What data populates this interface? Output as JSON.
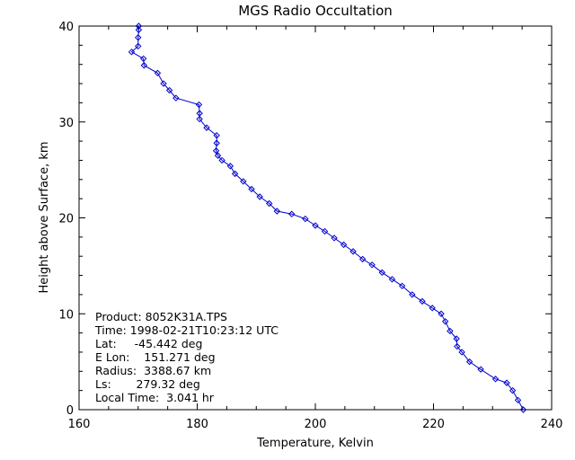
{
  "chart_data": {
    "type": "line",
    "title": "MGS Radio Occultation",
    "xlabel": "Temperature, Kelvin",
    "ylabel": "Height above Surface, km",
    "xlim": [
      160,
      240
    ],
    "ylim": [
      0,
      40
    ],
    "xticks": [
      "160",
      "180",
      "200",
      "220",
      "240"
    ],
    "yticks": [
      "0",
      "10",
      "20",
      "30",
      "40"
    ],
    "grid": false,
    "line_color": "#0000cc",
    "series": [
      {
        "points": [
          [
            235.2,
            0.0
          ],
          [
            234.3,
            1.0
          ],
          [
            233.4,
            2.0
          ],
          [
            232.4,
            2.8
          ],
          [
            230.5,
            3.2
          ],
          [
            228.0,
            4.2
          ],
          [
            226.1,
            5.0
          ],
          [
            224.8,
            6.0
          ],
          [
            224.0,
            6.6
          ],
          [
            223.9,
            7.4
          ],
          [
            222.8,
            8.2
          ],
          [
            222.0,
            9.2
          ],
          [
            221.3,
            10.0
          ],
          [
            219.8,
            10.6
          ],
          [
            218.1,
            11.3
          ],
          [
            216.4,
            12.0
          ],
          [
            214.7,
            12.9
          ],
          [
            213.0,
            13.6
          ],
          [
            211.3,
            14.3
          ],
          [
            209.6,
            15.1
          ],
          [
            208.0,
            15.7
          ],
          [
            206.4,
            16.5
          ],
          [
            204.8,
            17.2
          ],
          [
            203.2,
            17.9
          ],
          [
            201.6,
            18.6
          ],
          [
            200.0,
            19.2
          ],
          [
            198.3,
            19.9
          ],
          [
            196.0,
            20.4
          ],
          [
            193.5,
            20.7
          ],
          [
            192.2,
            21.5
          ],
          [
            190.6,
            22.2
          ],
          [
            189.2,
            23.0
          ],
          [
            187.8,
            23.8
          ],
          [
            186.4,
            24.6
          ],
          [
            185.6,
            25.4
          ],
          [
            184.2,
            26.0
          ],
          [
            183.5,
            26.5
          ],
          [
            183.2,
            27.0
          ],
          [
            183.3,
            27.8
          ],
          [
            183.3,
            28.6
          ],
          [
            181.6,
            29.4
          ],
          [
            180.4,
            30.3
          ],
          [
            180.4,
            30.9
          ],
          [
            180.3,
            31.8
          ],
          [
            176.4,
            32.5
          ],
          [
            175.3,
            33.3
          ],
          [
            174.3,
            34.0
          ],
          [
            173.3,
            35.1
          ],
          [
            171.0,
            35.9
          ],
          [
            170.9,
            36.6
          ],
          [
            168.9,
            37.3
          ],
          [
            170.0,
            37.9
          ],
          [
            170.0,
            38.8
          ],
          [
            170.1,
            39.6
          ],
          [
            170.1,
            40.0
          ]
        ]
      }
    ]
  },
  "info": {
    "product": "Product: 8052K31A.TPS",
    "time": "Time: 1998-02-21T10:23:12 UTC",
    "lat": "Lat:     -45.442 deg",
    "elon": "E Lon:    151.271 deg",
    "radius": "Radius:  3388.67 km",
    "ls": "Ls:       279.32 deg",
    "local_time": "Local Time:  3.041 hr"
  }
}
